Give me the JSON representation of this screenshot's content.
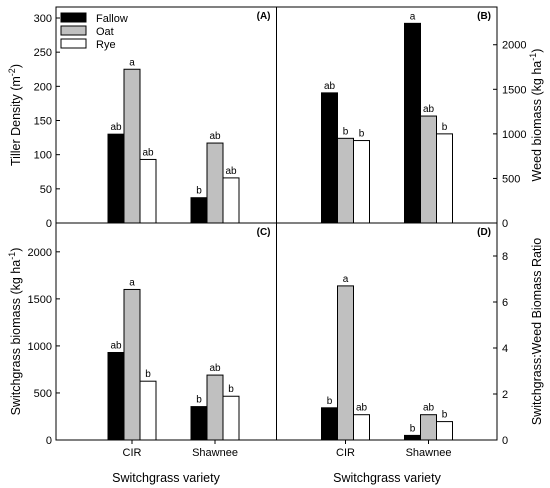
{
  "legend": [
    {
      "name": "Fallow",
      "color": "#000000"
    },
    {
      "name": "Oat",
      "color": "#c0c0c0"
    },
    {
      "name": "Rye",
      "color": "#ffffff"
    }
  ],
  "x_axis_title": "Switchgrass variety",
  "chart_data": [
    {
      "type": "bar",
      "panel": "(A)",
      "ylabel": "Tiller Density (m-2)",
      "ylabel_base": "Tiller Density (m",
      "ylabel_sup": "-2",
      "ylabel_end": ")",
      "axis_side": "left",
      "ylim": [
        0,
        300
      ],
      "yticks": [
        0,
        50,
        100,
        150,
        200,
        250,
        300
      ],
      "categories": [
        "",
        ""
      ],
      "series": [
        {
          "name": "Fallow",
          "values": [
            130,
            37
          ],
          "labels": [
            "ab",
            "b"
          ]
        },
        {
          "name": "Oat",
          "values": [
            225,
            117
          ],
          "labels": [
            "a",
            "ab"
          ]
        },
        {
          "name": "Rye",
          "values": [
            93,
            66
          ],
          "labels": [
            "ab",
            "ab"
          ]
        }
      ]
    },
    {
      "type": "bar",
      "panel": "(B)",
      "ylabel": "Weed biomass (kg ha-1)",
      "ylabel_base": "Weed biomass (kg ha",
      "ylabel_sup": "-1",
      "ylabel_end": ")",
      "axis_side": "right",
      "ylim": [
        0,
        2300
      ],
      "yticks": [
        0,
        500,
        1000,
        1500,
        2000
      ],
      "categories": [
        "",
        ""
      ],
      "series": [
        {
          "name": "Fallow",
          "values": [
            1460,
            2240
          ],
          "labels": [
            "ab",
            "a"
          ]
        },
        {
          "name": "Oat",
          "values": [
            950,
            1200
          ],
          "labels": [
            "b",
            "ab"
          ]
        },
        {
          "name": "Rye",
          "values": [
            925,
            1000
          ],
          "labels": [
            "b",
            "b"
          ]
        }
      ]
    },
    {
      "type": "bar",
      "panel": "(C)",
      "ylabel": "Switchgrass biomass (kg ha-1)",
      "ylabel_base": "Switchgrass biomass (kg ha",
      "ylabel_sup": "-1",
      "ylabel_end": ")",
      "axis_side": "left",
      "ylim": [
        0,
        2200
      ],
      "yticks": [
        0,
        500,
        1000,
        1500,
        2000
      ],
      "categories": [
        "CIR",
        "Shawnee"
      ],
      "series": [
        {
          "name": "Fallow",
          "values": [
            930,
            355
          ],
          "labels": [
            "ab",
            "b"
          ]
        },
        {
          "name": "Oat",
          "values": [
            1600,
            690
          ],
          "labels": [
            "a",
            "ab"
          ]
        },
        {
          "name": "Rye",
          "values": [
            625,
            465
          ],
          "labels": [
            "b",
            "b"
          ]
        }
      ]
    },
    {
      "type": "bar",
      "panel": "(D)",
      "ylabel": "Switchgrass:Weed Biomass Ratio",
      "ylabel_base": "Switchgrass:Weed Biomass Ratio",
      "ylabel_sup": "",
      "ylabel_end": "",
      "axis_side": "right",
      "ylim": [
        0,
        9
      ],
      "yticks": [
        0,
        2,
        4,
        6,
        8
      ],
      "categories": [
        "CIR",
        "Shawnee"
      ],
      "series": [
        {
          "name": "Fallow",
          "values": [
            1.4,
            0.2
          ],
          "labels": [
            "b",
            "b"
          ]
        },
        {
          "name": "Oat",
          "values": [
            6.7,
            1.1
          ],
          "labels": [
            "a",
            "ab"
          ]
        },
        {
          "name": "Rye",
          "values": [
            1.1,
            0.8
          ],
          "labels": [
            "ab",
            "b"
          ]
        }
      ]
    }
  ]
}
